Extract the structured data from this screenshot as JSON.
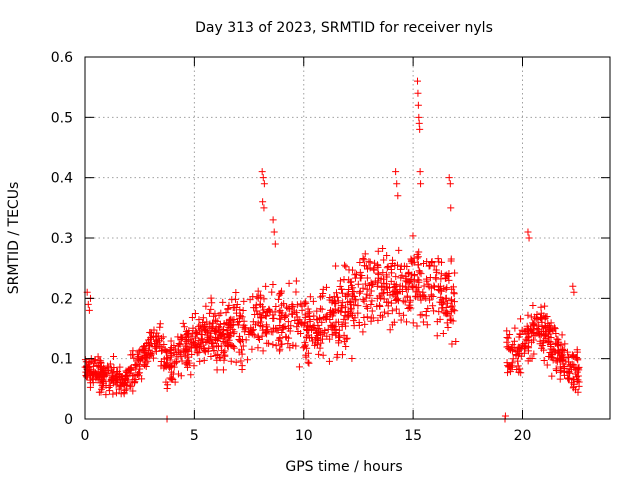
{
  "chart_data": {
    "type": "scatter",
    "title": "Day 313 of 2023, SRMTID for receiver nyls",
    "xlabel": "GPS time / hours",
    "ylabel": "SRMTID / TECUs",
    "xlim": [
      0,
      24
    ],
    "ylim": [
      0,
      0.6
    ],
    "xticks": [
      0,
      5,
      10,
      15,
      20
    ],
    "yticks": [
      0,
      0.1,
      0.2,
      0.3,
      0.4,
      0.5,
      0.6
    ],
    "xtick_labels": [
      "0",
      "5",
      "10",
      "15",
      "20"
    ],
    "ytick_labels": [
      "0",
      "0.1",
      "0.2",
      "0.3",
      "0.4",
      "0.5",
      "0.6"
    ],
    "grid": true,
    "marker": "+",
    "series": [
      {
        "name": "SRMTID",
        "color": "#ff0000",
        "trend": {
          "x": [
            0.0,
            0.3,
            0.8,
            1.2,
            1.7,
            2.2,
            2.7,
            3.0,
            3.3,
            3.8,
            4.3,
            4.8,
            5.2,
            5.7,
            6.2,
            6.8,
            7.3,
            7.8,
            8.3,
            8.7,
            9.2,
            9.7,
            10.2,
            10.7,
            11.3,
            11.8,
            12.3,
            12.8,
            13.3,
            13.8,
            14.3,
            14.8,
            15.3,
            15.8,
            16.3,
            16.9,
            19.3,
            19.6,
            19.9,
            20.3,
            20.6,
            21.0,
            21.4,
            21.8,
            22.2,
            22.6
          ],
          "y": [
            0.08,
            0.08,
            0.07,
            0.07,
            0.06,
            0.08,
            0.1,
            0.12,
            0.13,
            0.09,
            0.11,
            0.12,
            0.13,
            0.15,
            0.13,
            0.15,
            0.14,
            0.16,
            0.17,
            0.16,
            0.16,
            0.16,
            0.15,
            0.16,
            0.17,
            0.18,
            0.2,
            0.21,
            0.22,
            0.21,
            0.22,
            0.22,
            0.23,
            0.22,
            0.21,
            0.2,
            0.11,
            0.1,
            0.12,
            0.13,
            0.15,
            0.15,
            0.12,
            0.1,
            0.08,
            0.07
          ]
        },
        "spread": {
          "x": [
            0.0,
            2.5,
            5.0,
            7.5,
            10.0,
            12.5,
            15.0,
            17.0,
            19.3,
            21.0,
            22.7
          ],
          "y": [
            0.02,
            0.03,
            0.04,
            0.05,
            0.05,
            0.06,
            0.06,
            0.05,
            0.04,
            0.04,
            0.03
          ]
        },
        "gaps": [
          [
            16.95,
            19.25
          ]
        ],
        "sample_count": 1700,
        "notable_points": {
          "x": [
            0.1,
            0.15,
            0.2,
            0.25,
            3.75,
            8.1,
            8.15,
            8.2,
            8.12,
            8.18,
            8.6,
            8.65,
            8.7,
            14.2,
            14.25,
            14.3,
            15.2,
            15.22,
            15.24,
            15.26,
            15.28,
            15.3,
            15.32,
            15.34,
            16.65,
            16.7,
            16.72,
            19.2,
            19.22,
            20.25,
            20.3,
            22.3,
            22.35
          ],
          "y": [
            0.21,
            0.19,
            0.18,
            0.2,
            0.0,
            0.41,
            0.4,
            0.39,
            0.36,
            0.35,
            0.33,
            0.31,
            0.29,
            0.41,
            0.39,
            0.37,
            0.56,
            0.54,
            0.52,
            0.5,
            0.49,
            0.48,
            0.41,
            0.39,
            0.4,
            0.39,
            0.35,
            0.0,
            0.005,
            0.31,
            0.3,
            0.22,
            0.21
          ]
        }
      }
    ]
  }
}
